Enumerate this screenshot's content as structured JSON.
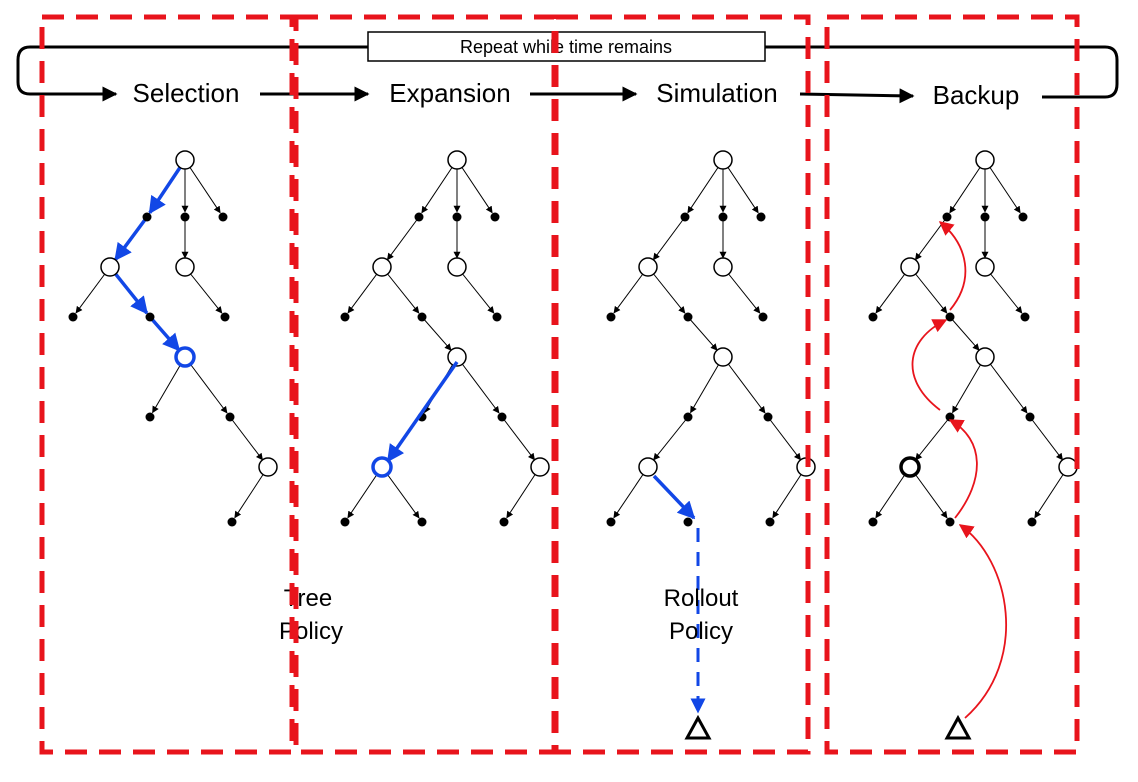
{
  "loop_label": "Repeat while time remains",
  "stages": [
    {
      "label": "Selection"
    },
    {
      "label": "Expansion"
    },
    {
      "label": "Simulation"
    },
    {
      "label": "Backup"
    }
  ],
  "notes": {
    "tree_policy": [
      "Tree",
      "Policy"
    ],
    "rollout_policy": [
      "Rollout",
      "Policy"
    ]
  },
  "colors": {
    "frame": "#e8141c",
    "path": "#1247e6",
    "backup": "#e8141c",
    "ink": "#000000"
  }
}
